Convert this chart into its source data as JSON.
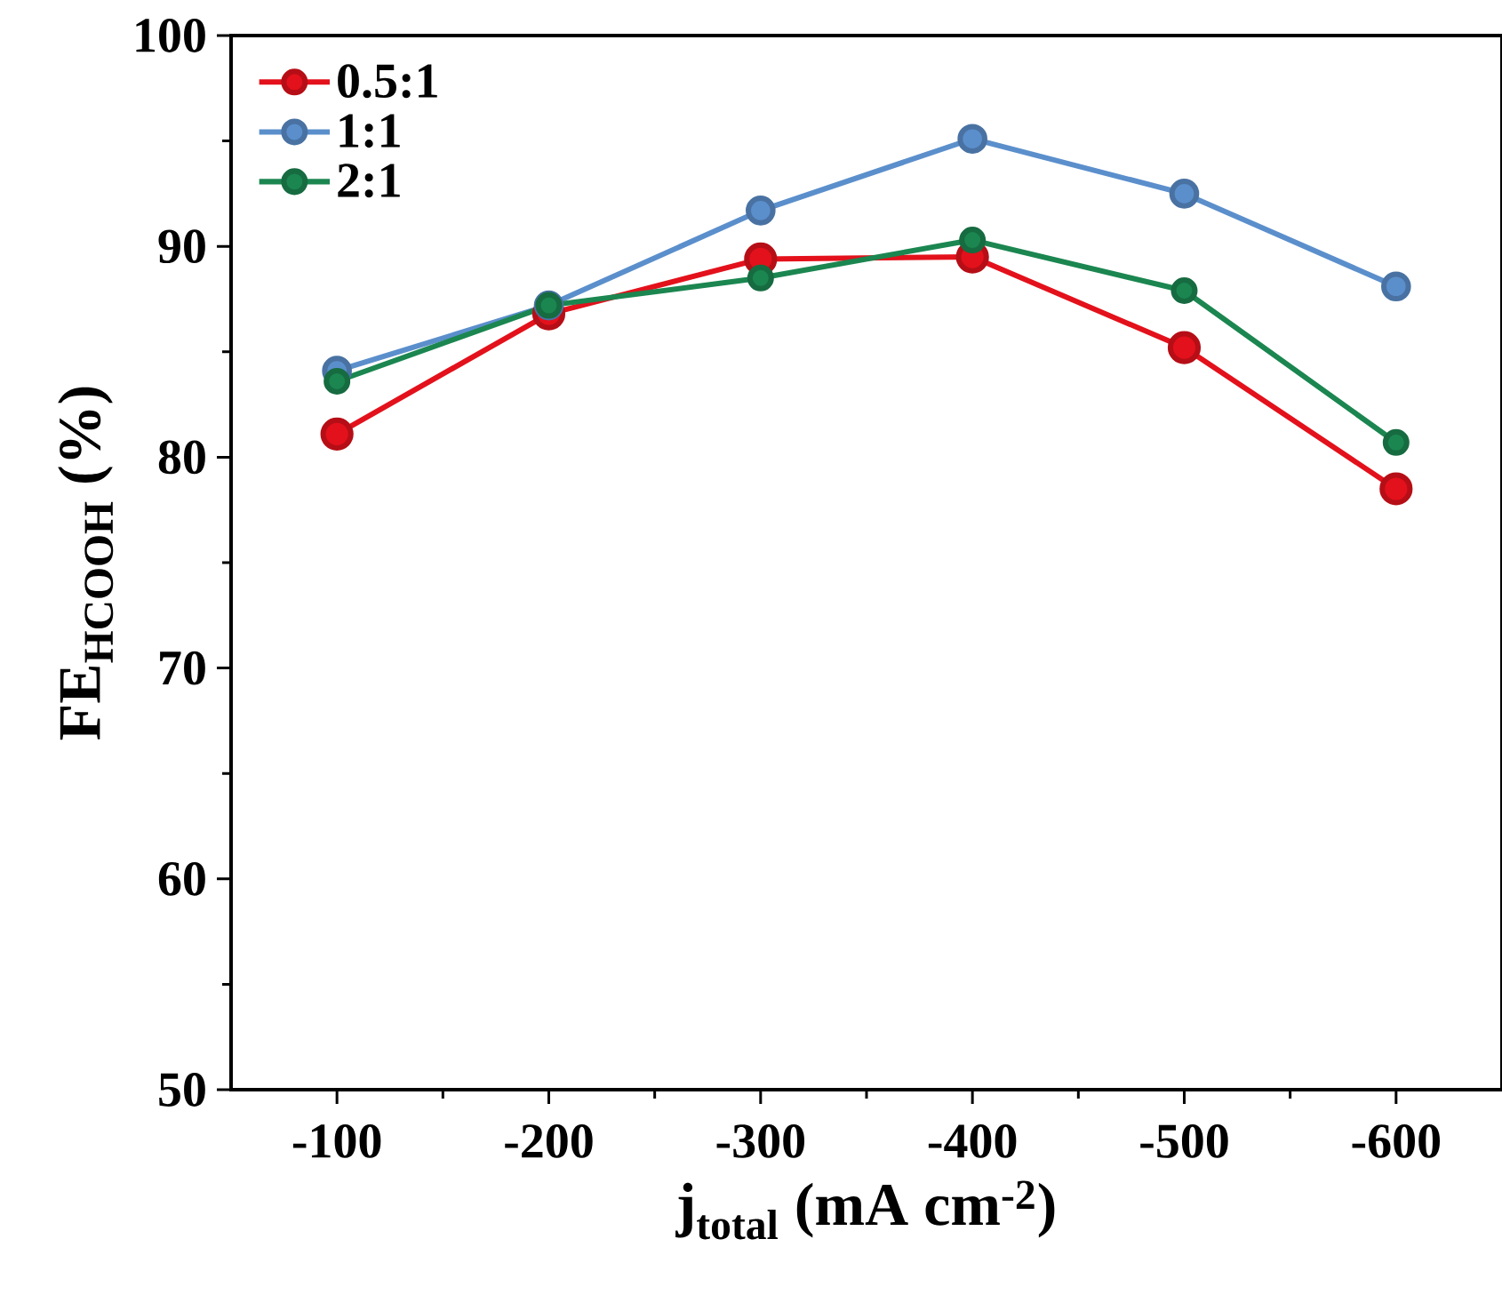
{
  "chart_data": {
    "type": "line",
    "xlabel": "j$_{total}$ (mA cm$^{-2}$)",
    "ylabel": "FE$_{HCOOH}$ (%)",
    "x": [
      -100,
      -200,
      -300,
      -400,
      -500,
      -600
    ],
    "series": [
      {
        "name": "0.5:1",
        "color": "#e3111b",
        "values": [
          81.1,
          86.8,
          89.4,
          89.5,
          85.2,
          78.5
        ]
      },
      {
        "name": "1:1",
        "color": "#5b8fcc",
        "values": [
          84.1,
          87.2,
          91.7,
          95.1,
          92.5,
          88.1
        ]
      },
      {
        "name": "2:1",
        "color": "#1b8650",
        "values": [
          83.6,
          87.2,
          88.5,
          90.3,
          87.9,
          80.7
        ]
      }
    ],
    "xlim": [
      -50,
      -650
    ],
    "xticks": [
      -100,
      -200,
      -300,
      -400,
      -500,
      -600
    ],
    "ylim": [
      50,
      100
    ],
    "yticks": [
      50,
      60,
      70,
      80,
      90,
      100
    ],
    "marker": "circle",
    "line_style": "solid",
    "legend": "top left",
    "grid": false
  }
}
